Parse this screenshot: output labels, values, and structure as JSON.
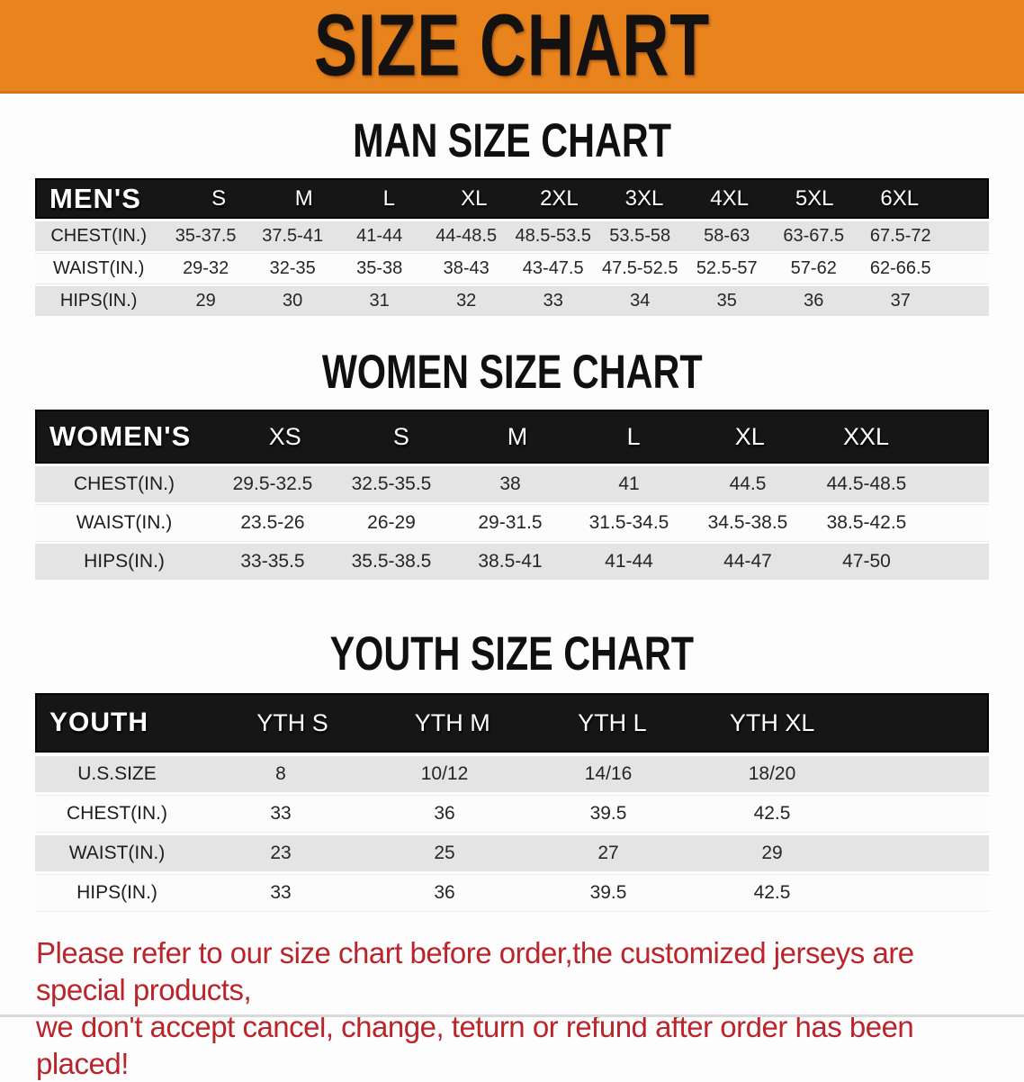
{
  "banner": {
    "title": "SIZE CHART",
    "bg_color": "#E8831D"
  },
  "men": {
    "heading": "MAN SIZE CHART",
    "label": "MEN'S",
    "sizes": [
      "S",
      "M",
      "L",
      "XL",
      "2XL",
      "3XL",
      "4XL",
      "5XL",
      "6XL"
    ],
    "rows": [
      {
        "label": "CHEST(IN.)",
        "values": [
          "35-37.5",
          "37.5-41",
          "41-44",
          "44-48.5",
          "48.5-53.5",
          "53.5-58",
          "58-63",
          "63-67.5",
          "67.5-72"
        ]
      },
      {
        "label": "WAIST(IN.)",
        "values": [
          "29-32",
          "32-35",
          "35-38",
          "38-43",
          "43-47.5",
          "47.5-52.5",
          "52.5-57",
          "57-62",
          "62-66.5"
        ]
      },
      {
        "label": "HIPS(IN.)",
        "values": [
          "29",
          "30",
          "31",
          "32",
          "33",
          "34",
          "35",
          "36",
          "37"
        ]
      }
    ]
  },
  "women": {
    "heading": "WOMEN SIZE CHART",
    "label": "WOMEN'S",
    "sizes": [
      "XS",
      "S",
      "M",
      "L",
      "XL",
      "XXL"
    ],
    "rows": [
      {
        "label": "CHEST(IN.)",
        "values": [
          "29.5-32.5",
          "32.5-35.5",
          "38",
          "41",
          "44.5",
          "44.5-48.5"
        ]
      },
      {
        "label": "WAIST(IN.)",
        "values": [
          "23.5-26",
          "26-29",
          "29-31.5",
          "31.5-34.5",
          "34.5-38.5",
          "38.5-42.5"
        ]
      },
      {
        "label": "HIPS(IN.)",
        "values": [
          "33-35.5",
          "35.5-38.5",
          "38.5-41",
          "41-44",
          "44-47",
          "47-50"
        ]
      }
    ]
  },
  "youth": {
    "heading": "YOUTH SIZE CHART",
    "label": "YOUTH",
    "sizes": [
      "YTH S",
      "YTH M",
      "YTH L",
      "YTH XL"
    ],
    "rows": [
      {
        "label": "U.S.SIZE",
        "values": [
          "8",
          "10/12",
          "14/16",
          "18/20"
        ]
      },
      {
        "label": "CHEST(IN.)",
        "values": [
          "33",
          "36",
          "39.5",
          "42.5"
        ]
      },
      {
        "label": "WAIST(IN.)",
        "values": [
          "23",
          "25",
          "27",
          "29"
        ]
      },
      {
        "label": "HIPS(IN.)",
        "values": [
          "33",
          "36",
          "39.5",
          "42.5"
        ]
      }
    ]
  },
  "footer": {
    "line1": "Please refer to our size chart before order,the customized jerseys are special products,",
    "line2": "we don't accept cancel, change, teturn or refund after order has been placed!"
  },
  "colors": {
    "banner_bg": "#E8831D",
    "table_header_bg": "#161616",
    "row_gray": "#E4E4E4",
    "row_white": "#FCFCFC",
    "footer_red": "#B9252B"
  }
}
